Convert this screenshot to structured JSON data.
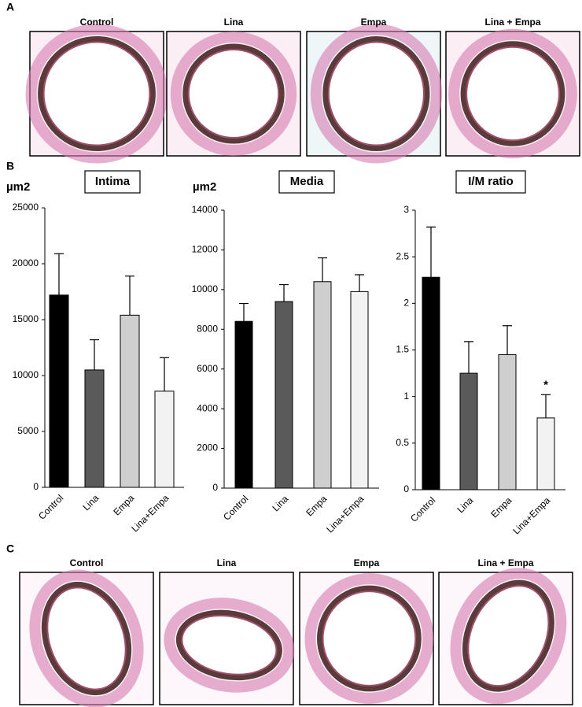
{
  "panels": {
    "a": {
      "letter": "A",
      "labels": [
        "Control",
        "Lina",
        "Empa",
        "Lina + Empa"
      ]
    },
    "b": {
      "letter": "B"
    },
    "c": {
      "letter": "C",
      "labels": [
        "Control",
        "Lina",
        "Empa",
        "Lina + Empa"
      ]
    }
  },
  "chart_data": [
    {
      "type": "bar",
      "title": "Intima",
      "y_unit": "µm2",
      "categories": [
        "Control",
        "Lina",
        "Empa",
        "Lina+Empa"
      ],
      "values": [
        17200,
        10500,
        15400,
        8600
      ],
      "errors": [
        3700,
        2700,
        3500,
        3000
      ],
      "colors": [
        "#000000",
        "#5a5a5a",
        "#cfcfcf",
        "#f2f2f2"
      ],
      "ylim": [
        0,
        25000
      ],
      "yticks": [
        0,
        5000,
        10000,
        15000,
        20000,
        25000
      ]
    },
    {
      "type": "bar",
      "title": "Media",
      "y_unit": "µm2",
      "categories": [
        "Control",
        "Lina",
        "Empa",
        "Lina+Empa"
      ],
      "values": [
        8400,
        9400,
        10400,
        9900
      ],
      "errors": [
        900,
        850,
        1200,
        850
      ],
      "colors": [
        "#000000",
        "#5a5a5a",
        "#cfcfcf",
        "#f2f2f2"
      ],
      "ylim": [
        0,
        14000
      ],
      "yticks": [
        0,
        2000,
        4000,
        6000,
        8000,
        10000,
        12000,
        14000
      ]
    },
    {
      "type": "bar",
      "title": "I/M ratio",
      "categories": [
        "Control",
        "Lina",
        "Empa",
        "Lina+Empa"
      ],
      "values": [
        2.28,
        1.25,
        1.45,
        0.77
      ],
      "errors": [
        0.54,
        0.34,
        0.31,
        0.25
      ],
      "value_annotations": [
        null,
        null,
        null,
        "*"
      ],
      "colors": [
        "#000000",
        "#5a5a5a",
        "#cfcfcf",
        "#f2f2f2"
      ],
      "ylim": [
        0,
        3
      ],
      "yticks": [
        0,
        0.5,
        1,
        1.5,
        2,
        2.5,
        3
      ]
    }
  ]
}
